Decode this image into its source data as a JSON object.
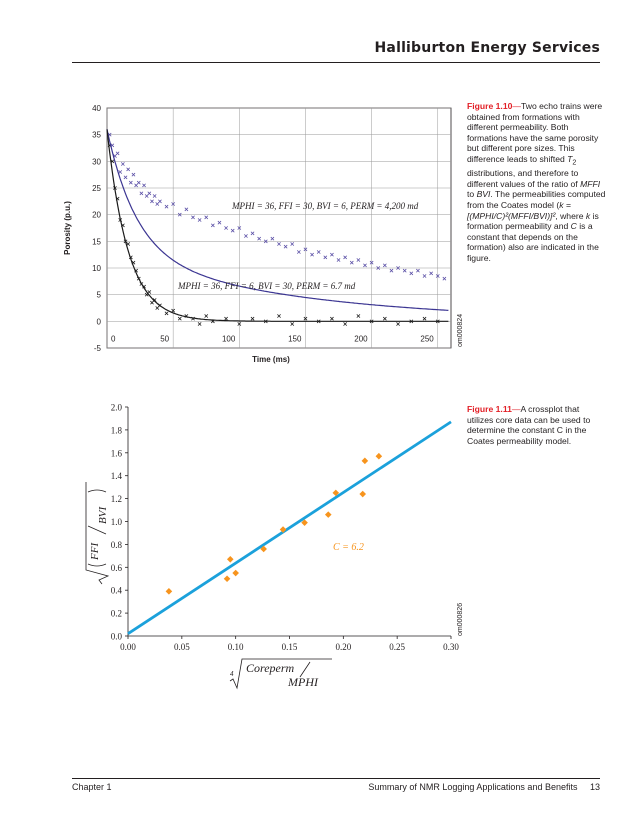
{
  "header": {
    "title": "Halliburton Energy Services"
  },
  "figure1": {
    "label": "Figure 1.10",
    "emdash": "—",
    "caption_parts": {
      "p1": "Two echo trains were obtained from formations with different permeability. Both formations have the same porosity but different pore sizes. This difference leads to shifted ",
      "t": "T",
      "t_sub": "2",
      "p2": " distributions, and therefore to different values of the ratio of ",
      "mffi": "MFFI",
      "to": " to ",
      "bvi": "BVI",
      "p3": ". The permeabilities computed from the Coates model (",
      "formula": "k = [(MPHI/C)²(MFFI/BVI)]²",
      "p4": ", where ",
      "k": "k",
      "p5": " is formation permeability and ",
      "c": "C",
      "p6": " is a constant that depends on the formation) also are indicated in the figure."
    },
    "code": "om000824"
  },
  "figure2": {
    "label": "Figure 1.11",
    "emdash": "—",
    "caption": "A crossplot that utilizes core data can be used to determine the constant C in the Coates permeability model.",
    "code": "om000826"
  },
  "footer": {
    "left": "Chapter 1",
    "right": "Summary of NMR Logging Applications and Benefits",
    "page": "13"
  },
  "chart_data": [
    {
      "type": "scatter",
      "xlabel": "Time (ms)",
      "ylabel": "Porosity (p.u.)",
      "xlim": [
        0,
        260
      ],
      "ylim": [
        -5,
        40
      ],
      "x_ticks": [
        0,
        50,
        100,
        150,
        200,
        250
      ],
      "y_ticks": [
        -5,
        0,
        5,
        10,
        15,
        20,
        25,
        30,
        35,
        40
      ],
      "grid": true,
      "series": [
        {
          "marker": "x",
          "color": "#5a4fa6",
          "fit": {
            "a0": 23,
            "tau0": 22,
            "a1": 13,
            "tau1": 140,
            "color": "#3b3592"
          },
          "values_x": [
            2,
            4,
            6,
            8,
            10,
            12,
            14,
            16,
            18,
            20,
            22,
            24,
            26,
            28,
            30,
            32,
            34,
            36,
            38,
            40,
            45,
            50,
            55,
            60,
            65,
            70,
            75,
            80,
            85,
            90,
            95,
            100,
            105,
            110,
            115,
            120,
            125,
            130,
            135,
            140,
            145,
            150,
            155,
            160,
            165,
            170,
            175,
            180,
            185,
            190,
            195,
            200,
            205,
            210,
            215,
            220,
            225,
            230,
            235,
            240,
            245,
            250,
            255
          ],
          "values_y": [
            35,
            33,
            31,
            31.5,
            28,
            29.5,
            27,
            28.5,
            26,
            27.5,
            25.5,
            26,
            24,
            25.5,
            23.5,
            24,
            22.5,
            23.5,
            22,
            22.5,
            21.5,
            22,
            20,
            21,
            19.5,
            19,
            19.5,
            18,
            18.5,
            17.5,
            17,
            17.5,
            16,
            16.5,
            15.5,
            15,
            15.5,
            14.5,
            14,
            14.5,
            13,
            13.5,
            12.5,
            13,
            12,
            12.5,
            11.5,
            12,
            11,
            11.5,
            10.5,
            11,
            10,
            10.5,
            9.5,
            10,
            9.5,
            9,
            9.5,
            8.5,
            9,
            8.5,
            8
          ]
        },
        {
          "marker": "x",
          "color": "#1a1a1a",
          "fit": {
            "a0": 36,
            "tau0": 16,
            "color": "#1a1a1a"
          },
          "values_x": [
            2,
            4,
            6,
            8,
            10,
            12,
            14,
            16,
            18,
            20,
            22,
            24,
            26,
            28,
            30,
            32,
            34,
            36,
            38,
            40,
            45,
            50,
            55,
            60,
            65,
            70,
            75,
            80,
            90,
            100,
            110,
            120,
            130,
            140,
            150,
            160,
            170,
            180,
            190,
            200,
            210,
            220,
            230,
            240,
            250
          ],
          "values_y": [
            33,
            30,
            25,
            23,
            19,
            18,
            15,
            14.5,
            12,
            11,
            9.5,
            8,
            7,
            6.5,
            5,
            5.5,
            3.5,
            4,
            2.5,
            3,
            1.5,
            2,
            0.5,
            1,
            0.5,
            -0.5,
            1,
            0,
            0.5,
            -0.5,
            0.5,
            0,
            1,
            -0.5,
            0.5,
            0,
            0.5,
            -0.5,
            1,
            0,
            0.5,
            -0.5,
            0,
            0.5,
            0
          ]
        }
      ],
      "annotations": [
        "MPHI = 36, FFI = 30, BVI = 6, PERM = 4,200 md",
        "MPHI = 36, FFI = 6, BVI = 30, PERM = 6.7 md"
      ]
    },
    {
      "type": "scatter",
      "xlim": [
        0,
        0.3
      ],
      "ylim": [
        0,
        2.0
      ],
      "x_ticks": [
        "0.00",
        "0.05",
        "0.10",
        "0.15",
        "0.20",
        "0.25",
        "0.30"
      ],
      "y_ticks": [
        "0.0",
        "0.2",
        "0.4",
        "0.6",
        "0.8",
        "1.0",
        "1.2",
        "1.4",
        "1.6",
        "1.8",
        "2.0"
      ],
      "grid": false,
      "ylabel_parts": {
        "num": "FFI",
        "den": "BVI"
      },
      "xlabel_parts": {
        "index": "4",
        "num": "Coreperm",
        "den": "MPHI"
      },
      "points_x": [
        0.038,
        0.092,
        0.095,
        0.1,
        0.126,
        0.144,
        0.164,
        0.186,
        0.193,
        0.218,
        0.22,
        0.233
      ],
      "points_y": [
        0.39,
        0.5,
        0.67,
        0.55,
        0.76,
        0.93,
        0.99,
        1.06,
        1.25,
        1.24,
        1.53,
        1.57
      ],
      "point_color": "#f7941d",
      "fit_line": {
        "x0": 0.0,
        "y0": 0.02,
        "x1": 0.3,
        "y1": 1.87,
        "color": "#1ba1db"
      },
      "annotation": "C = 6.2"
    }
  ]
}
